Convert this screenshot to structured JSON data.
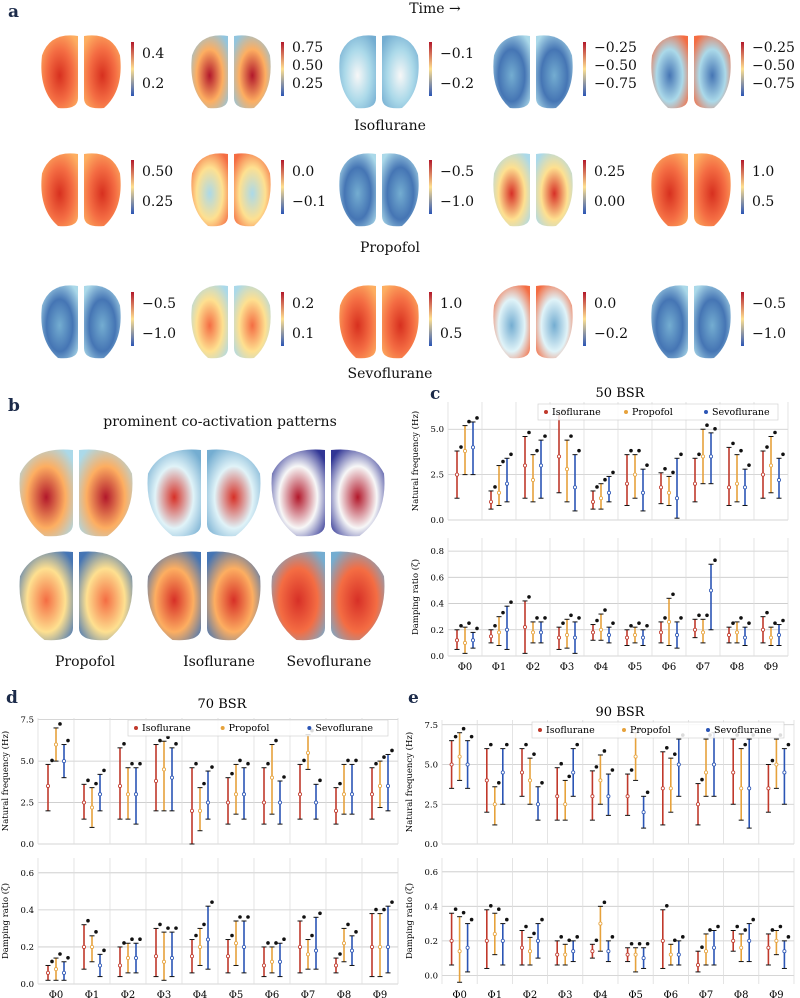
{
  "panel_labels": {
    "a": "a",
    "b": "b",
    "c": "c",
    "d": "d",
    "e": "e"
  },
  "panel_a": {
    "time_label": "Time →",
    "rows": [
      {
        "caption": "Isoflurane",
        "maps": [
          {
            "pattern": "warm",
            "ticks": [
              "0.4",
              "0.2"
            ]
          },
          {
            "pattern": "centerwarm",
            "ticks": [
              "0.75",
              "0.50",
              "0.25"
            ]
          },
          {
            "pattern": "mixed",
            "ticks": [
              "−0.1",
              "−0.2"
            ]
          },
          {
            "pattern": "cool",
            "ticks": [
              "−0.25",
              "−0.50",
              "−0.75"
            ]
          },
          {
            "pattern": "edgewarm",
            "ticks": [
              "−0.25",
              "−0.50",
              "−0.75"
            ]
          }
        ]
      },
      {
        "caption": "Propofol",
        "maps": [
          {
            "pattern": "warm",
            "ticks": [
              "0.50",
              "0.25"
            ]
          },
          {
            "pattern": "bandcool",
            "ticks": [
              "0.0",
              "−0.1"
            ]
          },
          {
            "pattern": "cool",
            "ticks": [
              "−0.5",
              "−1.0"
            ]
          },
          {
            "pattern": "topwarm",
            "ticks": [
              "0.25",
              "0.00"
            ]
          },
          {
            "pattern": "warm",
            "ticks": [
              "1.0",
              "0.5"
            ]
          }
        ]
      },
      {
        "caption": "Sevoflurane",
        "maps": [
          {
            "pattern": "cool",
            "ticks": [
              "−0.5",
              "−1.0"
            ]
          },
          {
            "pattern": "mixedwarm",
            "ticks": [
              "0.2",
              "0.1"
            ]
          },
          {
            "pattern": "warm",
            "ticks": [
              "1.0",
              "0.5"
            ]
          },
          {
            "pattern": "centercool",
            "ticks": [
              "0.0",
              "−0.2"
            ]
          },
          {
            "pattern": "cool",
            "ticks": [
              "−0.5",
              "−1.0"
            ]
          }
        ]
      }
    ]
  },
  "panel_b": {
    "title": "prominent co-activation patterns",
    "labels": [
      "Propofol",
      "Isoflurane",
      "Sevoflurane"
    ],
    "maps_top": [
      "bwarm",
      "bwarm2",
      "stripe"
    ],
    "maps_bottom": [
      "bwarm3",
      "bwarm4",
      "bwarm5"
    ]
  },
  "legend": [
    "Isoflurane",
    "Propofol",
    "Sevoflurane"
  ],
  "colors": {
    "Isoflurane": "#c0392b",
    "Propofol": "#e6a23c",
    "Sevoflurane": "#2b55b5"
  },
  "chart_data": [
    {
      "panel": "c",
      "type": "scatter",
      "title": "50 BSR",
      "ylabel_top": "Natural frequency (Hz)",
      "ylabel_bottom": "Damping ratio (ζ)",
      "categories": [
        "Φ0",
        "Φ1",
        "Φ2",
        "Φ3",
        "Φ4",
        "Φ5",
        "Φ6",
        "Φ7",
        "Φ8",
        "Φ9"
      ],
      "top": {
        "ylim": [
          0,
          6.5
        ],
        "yticks": [
          "0.0",
          "2.5",
          "5.0"
        ],
        "tickvals": [
          0,
          2.5,
          5
        ],
        "series": [
          {
            "name": "Isoflurane",
            "mean": [
              2.5,
              1.0,
              3.0,
              3.5,
              1.0,
              2.0,
              1.8,
              2.0,
              1.8,
              2.5
            ],
            "lo": [
              1.2,
              0.6,
              1.2,
              1.5,
              0.6,
              0.8,
              0.9,
              1.0,
              0.8,
              1.2
            ],
            "hi": [
              3.8,
              1.6,
              4.6,
              5.8,
              1.6,
              3.6,
              2.6,
              3.4,
              4.0,
              3.8
            ]
          },
          {
            "name": "Propofol",
            "mean": [
              3.8,
              1.5,
              2.2,
              2.8,
              1.2,
              2.5,
              1.5,
              3.5,
              2.0,
              3.0
            ],
            "lo": [
              2.5,
              0.8,
              1.0,
              1.0,
              0.6,
              1.2,
              0.8,
              2.0,
              1.0,
              1.5
            ],
            "hi": [
              5.2,
              3.0,
              3.6,
              4.4,
              2.0,
              3.6,
              2.4,
              5.0,
              3.6,
              4.6
            ]
          },
          {
            "name": "Sevoflurane",
            "mean": [
              4.0,
              2.0,
              3.0,
              1.8,
              1.5,
              1.5,
              1.2,
              3.5,
              1.8,
              2.2
            ],
            "lo": [
              2.5,
              1.0,
              1.2,
              0.5,
              1.0,
              0.5,
              0.1,
              2.0,
              0.8,
              1.2
            ],
            "hi": [
              5.4,
              3.4,
              4.4,
              3.6,
              2.4,
              2.8,
              3.4,
              4.8,
              2.8,
              3.4
            ]
          }
        ]
      },
      "bottom": {
        "ylim": [
          0,
          0.9
        ],
        "yticks": [
          "0.0",
          "0.2",
          "0.4",
          "0.6",
          "0.8"
        ],
        "tickvals": [
          0,
          0.2,
          0.4,
          0.6,
          0.8
        ],
        "series": [
          {
            "name": "Isoflurane",
            "mean": [
              0.12,
              0.15,
              0.22,
              0.14,
              0.18,
              0.14,
              0.18,
              0.2,
              0.16,
              0.2
            ],
            "lo": [
              0.05,
              0.1,
              0.02,
              0.05,
              0.12,
              0.08,
              0.1,
              0.14,
              0.1,
              0.1
            ],
            "hi": [
              0.2,
              0.2,
              0.42,
              0.22,
              0.24,
              0.2,
              0.26,
              0.28,
              0.22,
              0.3
            ]
          },
          {
            "name": "Propofol",
            "mean": [
              0.1,
              0.18,
              0.18,
              0.16,
              0.2,
              0.16,
              0.26,
              0.18,
              0.18,
              0.14
            ],
            "lo": [
              0.02,
              0.08,
              0.1,
              0.06,
              0.12,
              0.1,
              0.08,
              0.1,
              0.1,
              0.08
            ],
            "hi": [
              0.22,
              0.3,
              0.26,
              0.28,
              0.32,
              0.22,
              0.44,
              0.28,
              0.26,
              0.22
            ]
          },
          {
            "name": "Sevoflurane",
            "mean": [
              0.12,
              0.2,
              0.18,
              0.14,
              0.16,
              0.14,
              0.16,
              0.5,
              0.14,
              0.16
            ],
            "lo": [
              0.06,
              0.05,
              0.1,
              0.02,
              0.1,
              0.08,
              0.06,
              0.2,
              0.08,
              0.08
            ],
            "hi": [
              0.18,
              0.38,
              0.26,
              0.26,
              0.22,
              0.2,
              0.26,
              0.7,
              0.22,
              0.24
            ]
          }
        ]
      }
    },
    {
      "panel": "d",
      "type": "scatter",
      "title": "70 BSR",
      "ylabel_top": "Natural frequency (Hz)",
      "ylabel_bottom": "Damping ratio (ζ)",
      "categories": [
        "Φ0",
        "Φ1",
        "Φ2",
        "Φ3",
        "Φ4",
        "Φ5",
        "Φ6",
        "Φ7",
        "Φ8",
        "Φ9"
      ],
      "top": {
        "ylim": [
          0,
          7.6
        ],
        "yticks": [
          "0.0",
          "2.5",
          "5.0",
          "7.5"
        ],
        "tickvals": [
          0,
          2.5,
          5,
          7.5
        ],
        "series": [
          {
            "name": "Isoflurane",
            "mean": [
              3.5,
              2.5,
              3.5,
              3.8,
              2.0,
              2.5,
              2.5,
              3.0,
              2.0,
              3.0
            ],
            "lo": [
              2.0,
              1.5,
              1.5,
              2.0,
              0.0,
              1.2,
              1.2,
              1.5,
              1.2,
              1.5
            ],
            "hi": [
              4.8,
              3.6,
              5.8,
              6.0,
              4.6,
              4.0,
              4.6,
              4.8,
              3.4,
              4.6
            ]
          },
          {
            "name": "Propofol",
            "mean": [
              6.0,
              2.2,
              3.0,
              4.5,
              2.0,
              3.0,
              4.0,
              5.5,
              3.0,
              3.5
            ],
            "lo": [
              5.0,
              1.0,
              1.5,
              2.0,
              0.8,
              1.8,
              1.8,
              4.5,
              1.8,
              2.2
            ],
            "hi": [
              7.0,
              3.4,
              4.6,
              6.2,
              3.4,
              4.8,
              6.0,
              6.6,
              4.8,
              5.0
            ]
          },
          {
            "name": "Sevoflurane",
            "mean": [
              5.0,
              3.0,
              3.0,
              4.0,
              2.5,
              3.0,
              2.5,
              2.5,
              3.0,
              3.5
            ],
            "lo": [
              4.0,
              2.0,
              1.2,
              2.0,
              1.5,
              1.5,
              1.2,
              1.5,
              1.8,
              2.0
            ],
            "hi": [
              6.0,
              4.2,
              4.6,
              5.8,
              4.4,
              4.6,
              3.8,
              3.6,
              4.8,
              5.4
            ]
          }
        ]
      },
      "bottom": {
        "ylim": [
          0,
          0.68
        ],
        "yticks": [
          "0.0",
          "0.2",
          "0.4",
          "0.6"
        ],
        "tickvals": [
          0,
          0.2,
          0.4,
          0.6
        ],
        "series": [
          {
            "name": "Isoflurane",
            "mean": [
              0.06,
              0.2,
              0.1,
              0.15,
              0.15,
              0.15,
              0.1,
              0.2,
              0.1,
              0.2
            ],
            "lo": [
              0.02,
              0.08,
              0.04,
              0.04,
              0.06,
              0.06,
              0.04,
              0.06,
              0.06,
              0.04
            ],
            "hi": [
              0.1,
              0.32,
              0.2,
              0.3,
              0.24,
              0.24,
              0.2,
              0.34,
              0.14,
              0.38
            ]
          },
          {
            "name": "Propofol",
            "mean": [
              0.08,
              0.2,
              0.14,
              0.12,
              0.2,
              0.22,
              0.12,
              0.16,
              0.22,
              0.2
            ],
            "lo": [
              0.02,
              0.12,
              0.06,
              0.02,
              0.1,
              0.1,
              0.06,
              0.08,
              0.12,
              0.04
            ],
            "hi": [
              0.14,
              0.26,
              0.22,
              0.28,
              0.3,
              0.34,
              0.2,
              0.24,
              0.3,
              0.38
            ]
          },
          {
            "name": "Sevoflurane",
            "mean": [
              0.06,
              0.1,
              0.14,
              0.14,
              0.24,
              0.2,
              0.12,
              0.18,
              0.18,
              0.2
            ],
            "lo": [
              0.02,
              0.04,
              0.06,
              0.04,
              0.08,
              0.06,
              0.04,
              0.08,
              0.1,
              0.06
            ],
            "hi": [
              0.12,
              0.16,
              0.22,
              0.28,
              0.42,
              0.34,
              0.22,
              0.36,
              0.26,
              0.42
            ]
          }
        ]
      }
    },
    {
      "panel": "e",
      "type": "scatter",
      "title": "90 BSR",
      "ylabel_top": "Natural frequency (Hz)",
      "ylabel_bottom": "Damping ratio (ζ)",
      "categories": [
        "Φ0",
        "Φ1",
        "Φ2",
        "Φ3",
        "Φ4",
        "Φ5",
        "Φ6",
        "Φ7",
        "Φ8",
        "Φ9"
      ],
      "top": {
        "ylim": [
          0,
          7.8
        ],
        "yticks": [
          "0.0",
          "2.5",
          "5.0",
          "7.5"
        ],
        "tickvals": [
          0,
          2.5,
          5,
          7.5
        ],
        "series": [
          {
            "name": "Isoflurane",
            "mean": [
              5.0,
              4.0,
              4.5,
              3.0,
              3.0,
              3.0,
              3.5,
              2.5,
              4.5,
              3.5
            ],
            "lo": [
              3.5,
              2.0,
              3.0,
              1.5,
              1.5,
              1.8,
              1.2,
              1.2,
              2.5,
              2.0
            ],
            "hi": [
              6.5,
              6.0,
              6.0,
              4.8,
              4.6,
              4.4,
              5.8,
              3.8,
              6.6,
              5.0
            ]
          },
          {
            "name": "Propofol",
            "mean": [
              5.5,
              2.5,
              4.0,
              2.5,
              4.0,
              5.5,
              3.5,
              4.5,
              3.5,
              5.0
            ],
            "lo": [
              4.0,
              1.2,
              2.5,
              1.5,
              2.5,
              4.0,
              2.0,
              3.0,
              1.5,
              3.5
            ],
            "hi": [
              7.0,
              3.6,
              5.4,
              4.0,
              5.6,
              7.0,
              5.4,
              6.6,
              6.0,
              6.6
            ]
          },
          {
            "name": "Sevoflurane",
            "mean": [
              5.0,
              4.5,
              2.5,
              4.5,
              3.0,
              2.0,
              5.0,
              5.0,
              3.5,
              4.5
            ],
            "lo": [
              3.5,
              2.5,
              1.5,
              3.0,
              1.8,
              1.0,
              3.0,
              3.0,
              1.0,
              2.5
            ],
            "hi": [
              6.5,
              6.0,
              3.6,
              6.0,
              4.4,
              3.0,
              6.6,
              7.0,
              6.6,
              6.0
            ]
          }
        ]
      },
      "bottom": {
        "ylim": [
          -0.05,
          0.68
        ],
        "yticks": [
          "0.0",
          "0.2",
          "0.4",
          "0.6"
        ],
        "tickvals": [
          0,
          0.2,
          0.4,
          0.6
        ],
        "series": [
          {
            "name": "Isoflurane",
            "mean": [
              0.2,
              0.2,
              0.16,
              0.12,
              0.14,
              0.12,
              0.2,
              0.06,
              0.2,
              0.16
            ],
            "lo": [
              0.06,
              0.04,
              0.06,
              0.06,
              0.1,
              0.08,
              0.04,
              0.02,
              0.14,
              0.06
            ],
            "hi": [
              0.36,
              0.38,
              0.26,
              0.2,
              0.18,
              0.16,
              0.38,
              0.14,
              0.26,
              0.24
            ]
          },
          {
            "name": "Propofol",
            "mean": [
              0.14,
              0.24,
              0.14,
              0.12,
              0.3,
              0.12,
              0.12,
              0.14,
              0.16,
              0.2
            ],
            "lo": [
              -0.04,
              0.12,
              0.06,
              0.06,
              0.14,
              0.02,
              0.06,
              0.06,
              0.08,
              0.12
            ],
            "hi": [
              0.34,
              0.36,
              0.22,
              0.18,
              0.4,
              0.16,
              0.18,
              0.24,
              0.24,
              0.26
            ]
          },
          {
            "name": "Sevoflurane",
            "mean": [
              0.16,
              0.2,
              0.2,
              0.14,
              0.14,
              0.1,
              0.12,
              0.16,
              0.2,
              0.14
            ],
            "lo": [
              0.02,
              0.06,
              0.1,
              0.08,
              0.08,
              0.04,
              0.06,
              0.06,
              0.08,
              0.04
            ],
            "hi": [
              0.3,
              0.3,
              0.3,
              0.2,
              0.2,
              0.16,
              0.2,
              0.26,
              0.3,
              0.2
            ]
          }
        ]
      }
    }
  ]
}
